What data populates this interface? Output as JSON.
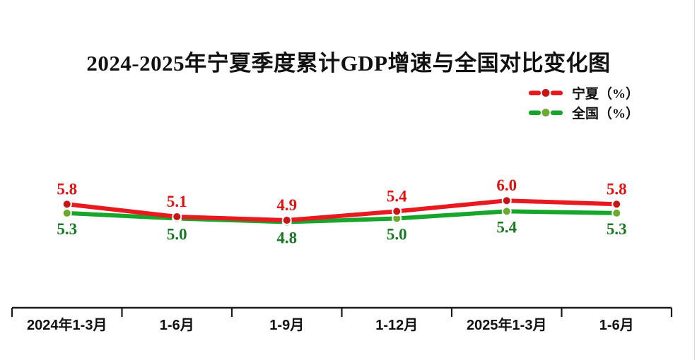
{
  "title": "2024-2025年宁夏季度累计GDP增速与全国对比变化图",
  "legend": {
    "items": [
      {
        "label": "宁夏（%）",
        "line_color": "#e8191f",
        "marker_color": "#c81616"
      },
      {
        "label": "全国（%）",
        "line_color": "#18a52c",
        "marker_color": "#6aab2d"
      }
    ]
  },
  "chart_data": {
    "type": "line",
    "title": "2024-2025年宁夏季度累计GDP增速与全国对比变化图",
    "categories": [
      "2024年1-3月",
      "1-6月",
      "1-9月",
      "1-12月",
      "2025年1-3月",
      "1-6月"
    ],
    "series": [
      {
        "name": "宁夏（%）",
        "values": [
          5.8,
          5.1,
          4.9,
          5.4,
          6.0,
          5.8
        ],
        "line_color": "#e8191f",
        "marker_color": "#c81616",
        "label_color": "#e01212",
        "label_position": "above"
      },
      {
        "name": "全国（%）",
        "values": [
          5.3,
          5.0,
          4.8,
          5.0,
          5.4,
          5.3
        ],
        "line_color": "#18a52c",
        "marker_color": "#6aab2d",
        "label_color": "#177a22",
        "label_position": "below"
      }
    ],
    "ylim": [
      0,
      8
    ],
    "grid": false,
    "legend_position": "top-right",
    "data_labels": true,
    "axis_color": "#1a1a1a",
    "category_label_color": "#111111"
  }
}
